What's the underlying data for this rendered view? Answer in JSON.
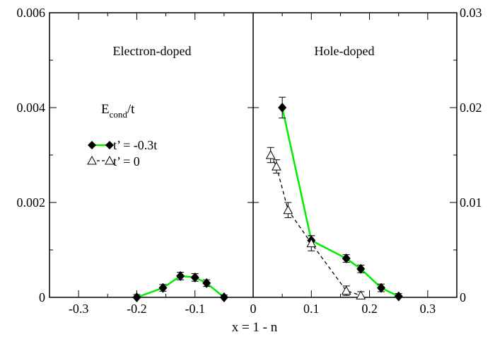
{
  "chart_data": {
    "type": "line",
    "xlabel": "x = 1 - n",
    "xlim": [
      -0.35,
      0.35
    ],
    "x_ticks": [
      "-0.3",
      "-0.2",
      "-0.1",
      "0",
      "0.1",
      "0.2",
      "0.3"
    ],
    "left_axis": {
      "ylim": [
        0,
        0.006
      ],
      "ticks": [
        "0",
        "0.002",
        "0.004",
        "0.006"
      ]
    },
    "right_axis": {
      "ylim": [
        0,
        0.03
      ],
      "ticks": [
        "0",
        "0.01",
        "0.02",
        "0.03"
      ]
    },
    "divider_x": 0,
    "panel_labels": {
      "left": "Electron-doped",
      "right": "Hole-doped"
    },
    "quantity_label": {
      "main": "E",
      "subscript": "cond",
      "suffix": "/t"
    },
    "grid": false,
    "legend_position": "left panel, upper-left",
    "series": [
      {
        "name": "t’ = -0.3t",
        "axis": "left",
        "color": "#00ee00",
        "marker": "filled-diamond",
        "line": "solid",
        "points": [
          {
            "x": -0.2,
            "y": 0.0,
            "err": 6e-05
          },
          {
            "x": -0.155,
            "y": 0.0002,
            "err": 7e-05
          },
          {
            "x": -0.125,
            "y": 0.00045,
            "err": 8e-05
          },
          {
            "x": -0.1,
            "y": 0.00042,
            "err": 8e-05
          },
          {
            "x": -0.08,
            "y": 0.0003,
            "err": 7e-05
          },
          {
            "x": -0.05,
            "y": 0.0,
            "err": 5e-05
          }
        ]
      },
      {
        "name": "t’ = -0.3t",
        "axis": "right",
        "color": "#00ee00",
        "marker": "filled-diamond",
        "line": "solid",
        "points": [
          {
            "x": 0.05,
            "y": 0.02,
            "err": 0.0011
          },
          {
            "x": 0.1,
            "y": 0.006,
            "err": 0.0005
          },
          {
            "x": 0.16,
            "y": 0.0041,
            "err": 0.0004
          },
          {
            "x": 0.185,
            "y": 0.003,
            "err": 0.0004
          },
          {
            "x": 0.22,
            "y": 0.001,
            "err": 0.0004
          },
          {
            "x": 0.25,
            "y": 0.0001,
            "err": 0.0003
          }
        ]
      },
      {
        "name": "t’ = 0",
        "axis": "right",
        "color": "#000000",
        "marker": "open-triangle",
        "line": "dashed",
        "points": [
          {
            "x": 0.03,
            "y": 0.015,
            "err": 0.0008
          },
          {
            "x": 0.04,
            "y": 0.0138,
            "err": 0.0007
          },
          {
            "x": 0.06,
            "y": 0.0092,
            "err": 0.0008
          },
          {
            "x": 0.1,
            "y": 0.0057,
            "err": 0.0008
          },
          {
            "x": 0.16,
            "y": 0.0007,
            "err": 0.0005
          },
          {
            "x": 0.185,
            "y": 0.0002,
            "err": 0.0004
          }
        ]
      }
    ],
    "legend": [
      {
        "label": "t’ = -0.3t",
        "marker": "filled-diamond",
        "line": "solid",
        "color": "#00ee00"
      },
      {
        "label": "t’ = 0",
        "marker": "open-triangle",
        "line": "dashed",
        "color": "#000000"
      }
    ]
  }
}
